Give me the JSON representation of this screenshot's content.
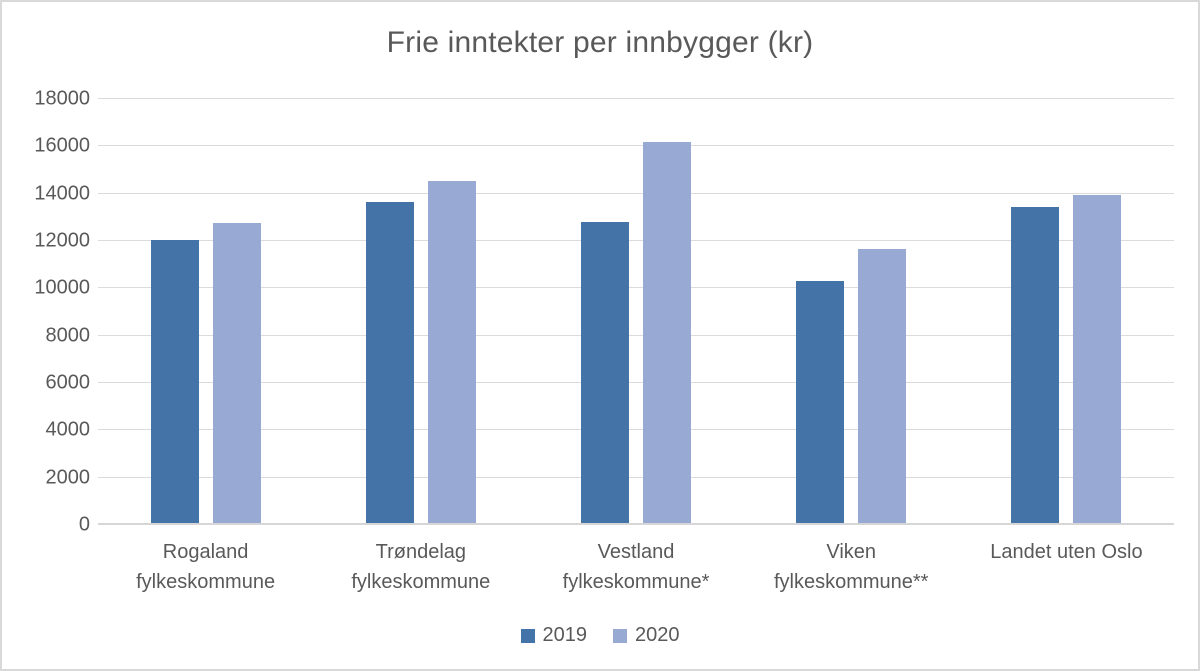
{
  "chart_data": {
    "type": "bar",
    "title": "Frie inntekter per innbygger (kr)",
    "categories": [
      "Rogaland\nfylkeskommune",
      "Trøndelag\nfylkeskommune",
      "Vestland\nfylkeskommune*",
      "Viken\nfylkeskommune**",
      "Landet uten Oslo"
    ],
    "series": [
      {
        "name": "2019",
        "color": "#4373A7",
        "values": [
          12050,
          13650,
          12800,
          10300,
          13450
        ]
      },
      {
        "name": "2020",
        "color": "#98AAD3",
        "values": [
          12750,
          14550,
          16200,
          11650,
          13950
        ]
      }
    ],
    "xlabel": "",
    "ylabel": "",
    "ylim": [
      0,
      18000
    ],
    "ytick_step": 2000,
    "grid": true,
    "legend_position": "bottom"
  },
  "colors": {
    "text": "#595959",
    "gridline": "#dbdbdb",
    "axis_line": "#d6d6d6",
    "frame_border": "#d9d9d9",
    "background": "#ffffff"
  }
}
